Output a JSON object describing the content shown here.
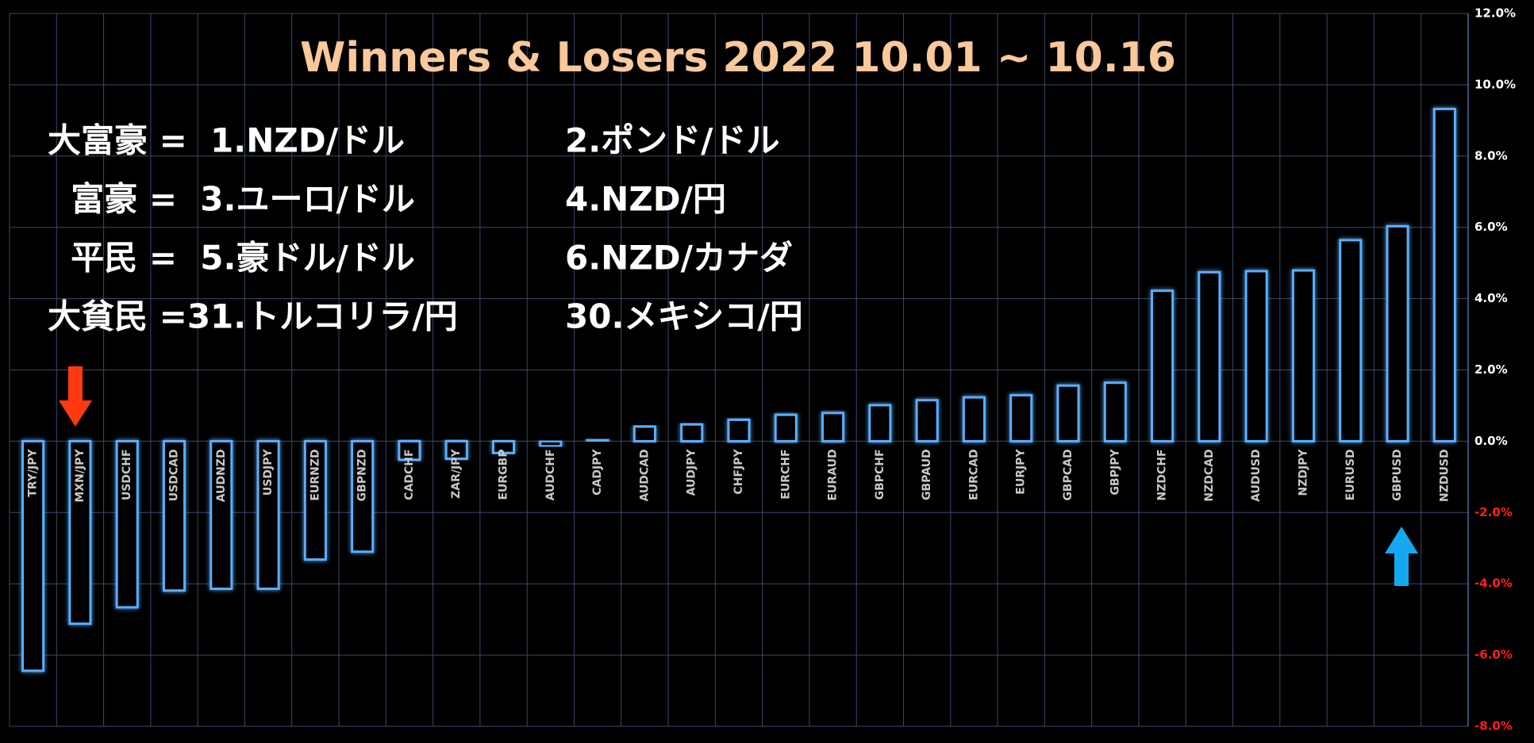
{
  "chart_data": {
    "type": "bar",
    "title": "Winners & Losers  2022 10.01 ~ 10.16",
    "annotations": [
      {
        "left": "大富豪 =  1.NZD/ドル",
        "right": "2.ポンド/ドル"
      },
      {
        "left": "  富豪 =  3.ユーロ/ドル",
        "right": "4.NZD/円"
      },
      {
        "left": "  平民 =  5.豪ドル/ドル",
        "right": "6.NZD/カナダ"
      },
      {
        "left": "大貧民 =31.トルコリラ/円",
        "right": "30.メキシコ/円"
      }
    ],
    "categories": [
      "TRY/JPY",
      "MXN/JPY",
      "USDCHF",
      "USDCAD",
      "AUDNZD",
      "USDJPY",
      "EURNZD",
      "GBPNZD",
      "CADCHF",
      "ZAR/JPY",
      "EURGBP",
      "AUDCHF",
      "CADJPY",
      "AUDCAD",
      "AUDJPY",
      "CHFJPY",
      "EURCHF",
      "EURAUD",
      "GBPCHF",
      "GBPAUD",
      "EURCAD",
      "EURJPY",
      "GBPCAD",
      "GBPJPY",
      "NZDCHF",
      "NZDCAD",
      "AUDUSD",
      "NZDJPY",
      "EURUSD",
      "GBPUSD",
      "NZDUSD"
    ],
    "values": [
      -6.44,
      -5.12,
      -4.66,
      -4.19,
      -4.14,
      -4.14,
      -3.32,
      -3.1,
      -0.52,
      -0.49,
      -0.33,
      -0.14,
      0.05,
      0.41,
      0.47,
      0.6,
      0.74,
      0.79,
      1.01,
      1.15,
      1.23,
      1.29,
      1.56,
      1.64,
      4.22,
      4.74,
      4.77,
      4.79,
      5.64,
      6.03,
      9.32
    ],
    "color": "#5aaeff",
    "ylim": [
      -8,
      12
    ],
    "yticks": [
      {
        "value": -8,
        "label": "-8.0%"
      },
      {
        "value": -6,
        "label": "-6.0%"
      },
      {
        "value": -4,
        "label": "-4.0%"
      },
      {
        "value": -2,
        "label": "-2.0%"
      },
      {
        "value": 0,
        "label": "0.0%"
      },
      {
        "value": 2,
        "label": "2.0%"
      },
      {
        "value": 4,
        "label": "4.0%"
      },
      {
        "value": 6,
        "label": "6.0%"
      },
      {
        "value": 8,
        "label": "8.0%"
      },
      {
        "value": 10,
        "label": "10.0%"
      },
      {
        "value": 12,
        "label": "12.0%"
      }
    ],
    "y_axis_side": "right",
    "tick_color": "#ffffff",
    "negative_tick_color": "#ff2020",
    "grid": true
  }
}
